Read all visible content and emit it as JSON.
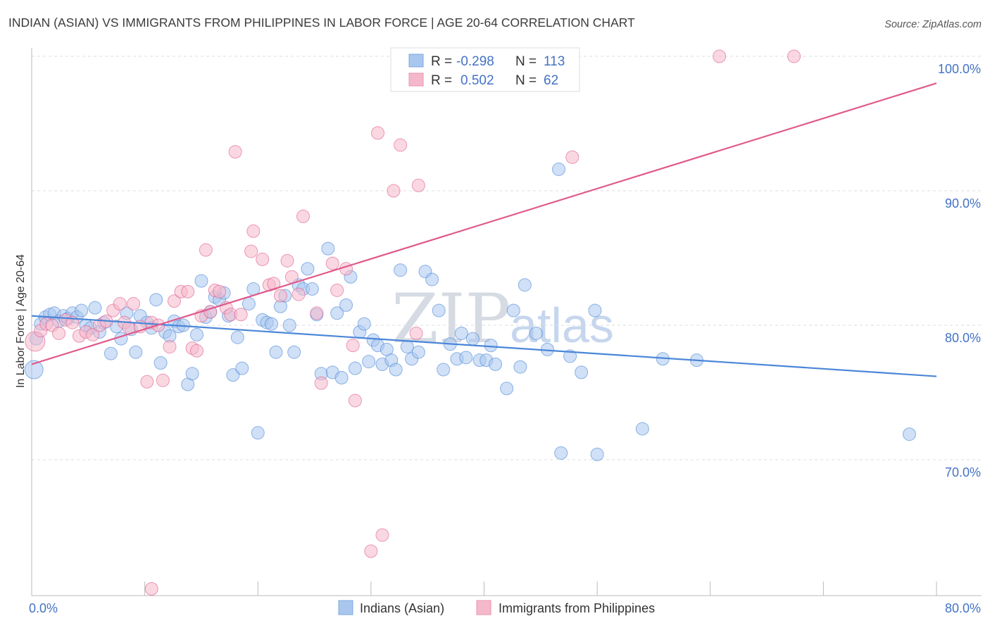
{
  "header": {
    "title": "INDIAN (ASIAN) VS IMMIGRANTS FROM PHILIPPINES IN LABOR FORCE | AGE 20-64 CORRELATION CHART",
    "source": "Source: ZipAtlas.com"
  },
  "watermark": {
    "part1": "ZIP",
    "part2": "atlas"
  },
  "legend_top": {
    "rows": [
      {
        "r_label": "R =",
        "r_value": "-0.298",
        "n_label": "N =",
        "n_value": "113",
        "color": "#a9c6ee"
      },
      {
        "r_label": "R =",
        "r_value": "0.502",
        "n_label": "N =",
        "n_value": "62",
        "color": "#f5b8cb"
      }
    ]
  },
  "legend_bottom": {
    "items": [
      {
        "label": "Indians (Asian)",
        "color": "#a9c6ee"
      },
      {
        "label": "Immigrants from Philippines",
        "color": "#f5b8cb"
      }
    ]
  },
  "chart_data": {
    "type": "scatter",
    "title": "INDIAN (ASIAN) VS IMMIGRANTS FROM PHILIPPINES IN LABOR FORCE | AGE 20-64 CORRELATION CHART",
    "xlabel": "",
    "ylabel": "In Labor Force | Age 20-64",
    "xlim": [
      0,
      80
    ],
    "ylim": [
      60,
      101
    ],
    "x_tick_labels": [
      "0.0%",
      "80.0%"
    ],
    "y_ticks": [
      70,
      80,
      90,
      100
    ],
    "y_tick_labels": [
      "70.0%",
      "80.0%",
      "90.0%",
      "100.0%"
    ],
    "grid": true,
    "series": [
      {
        "name": "Indians (Asian)",
        "color": "#4a86d8",
        "fill": "#a9c6ee",
        "trend": {
          "x": [
            0,
            80
          ],
          "y": [
            80.7,
            76.2
          ]
        },
        "points": [
          [
            0.2,
            76.7
          ],
          [
            0.4,
            79.0
          ],
          [
            0.8,
            80.1
          ],
          [
            1.2,
            80.6
          ],
          [
            1.6,
            80.8
          ],
          [
            2.0,
            80.9
          ],
          [
            2.4,
            80.3
          ],
          [
            2.8,
            80.7
          ],
          [
            3.2,
            80.5
          ],
          [
            3.6,
            80.9
          ],
          [
            4.0,
            80.6
          ],
          [
            4.4,
            81.1
          ],
          [
            4.8,
            80.0
          ],
          [
            5.2,
            79.8
          ],
          [
            5.6,
            81.3
          ],
          [
            6.0,
            79.5
          ],
          [
            6.4,
            80.2
          ],
          [
            7.0,
            77.9
          ],
          [
            7.5,
            79.9
          ],
          [
            7.9,
            79.0
          ],
          [
            8.4,
            80.9
          ],
          [
            8.8,
            79.7
          ],
          [
            9.2,
            78.0
          ],
          [
            9.6,
            80.7
          ],
          [
            10.2,
            80.2
          ],
          [
            10.6,
            79.8
          ],
          [
            11.0,
            81.9
          ],
          [
            11.4,
            77.2
          ],
          [
            11.8,
            79.5
          ],
          [
            12.2,
            79.2
          ],
          [
            12.6,
            80.3
          ],
          [
            13.0,
            79.9
          ],
          [
            13.4,
            80.0
          ],
          [
            13.8,
            75.6
          ],
          [
            14.2,
            76.4
          ],
          [
            14.6,
            79.3
          ],
          [
            15.0,
            83.3
          ],
          [
            15.4,
            80.6
          ],
          [
            15.8,
            81.0
          ],
          [
            16.2,
            82.1
          ],
          [
            16.6,
            81.9
          ],
          [
            17.0,
            82.4
          ],
          [
            17.4,
            80.7
          ],
          [
            17.8,
            76.3
          ],
          [
            18.2,
            79.1
          ],
          [
            18.6,
            76.8
          ],
          [
            19.2,
            81.6
          ],
          [
            19.6,
            82.7
          ],
          [
            20.0,
            72.0
          ],
          [
            20.4,
            80.4
          ],
          [
            20.8,
            80.2
          ],
          [
            21.2,
            80.1
          ],
          [
            21.6,
            78.0
          ],
          [
            22.0,
            81.4
          ],
          [
            22.4,
            82.2
          ],
          [
            22.8,
            80.0
          ],
          [
            23.2,
            78.0
          ],
          [
            23.6,
            83.0
          ],
          [
            24.0,
            82.7
          ],
          [
            24.4,
            84.2
          ],
          [
            24.8,
            82.7
          ],
          [
            25.2,
            80.8
          ],
          [
            25.6,
            76.4
          ],
          [
            26.2,
            85.7
          ],
          [
            26.6,
            76.5
          ],
          [
            27.0,
            80.9
          ],
          [
            27.4,
            76.1
          ],
          [
            27.8,
            81.5
          ],
          [
            28.2,
            83.6
          ],
          [
            28.6,
            76.8
          ],
          [
            29.0,
            79.5
          ],
          [
            29.4,
            80.1
          ],
          [
            29.8,
            77.3
          ],
          [
            30.2,
            78.9
          ],
          [
            30.6,
            78.5
          ],
          [
            31.0,
            77.1
          ],
          [
            31.4,
            78.2
          ],
          [
            31.8,
            77.4
          ],
          [
            32.2,
            76.7
          ],
          [
            32.6,
            84.1
          ],
          [
            33.2,
            78.4
          ],
          [
            33.6,
            77.5
          ],
          [
            34.2,
            78.0
          ],
          [
            34.8,
            84.0
          ],
          [
            35.4,
            83.4
          ],
          [
            36.0,
            81.1
          ],
          [
            36.4,
            76.7
          ],
          [
            37.0,
            78.6
          ],
          [
            37.6,
            77.5
          ],
          [
            38.0,
            79.4
          ],
          [
            38.4,
            77.6
          ],
          [
            39.0,
            79.0
          ],
          [
            39.6,
            77.4
          ],
          [
            40.2,
            77.4
          ],
          [
            40.6,
            78.5
          ],
          [
            41.0,
            77.1
          ],
          [
            42.0,
            75.3
          ],
          [
            42.6,
            81.1
          ],
          [
            43.2,
            76.9
          ],
          [
            43.6,
            83.0
          ],
          [
            44.6,
            79.4
          ],
          [
            45.6,
            78.2
          ],
          [
            46.6,
            91.6
          ],
          [
            46.8,
            70.5
          ],
          [
            47.6,
            77.7
          ],
          [
            48.6,
            76.5
          ],
          [
            49.8,
            81.1
          ],
          [
            50.0,
            70.4
          ],
          [
            54.0,
            72.3
          ],
          [
            55.8,
            77.5
          ],
          [
            58.8,
            77.4
          ],
          [
            77.6,
            71.9
          ]
        ]
      },
      {
        "name": "Immigrants from Philippines",
        "color": "#e05a8c",
        "fill": "#f5b8cb",
        "trend": {
          "x": [
            0,
            80
          ],
          "y": [
            77.1,
            98.0
          ]
        },
        "points": [
          [
            0.3,
            78.8
          ],
          [
            0.8,
            79.6
          ],
          [
            1.3,
            80.1
          ],
          [
            1.8,
            80.0
          ],
          [
            2.4,
            79.4
          ],
          [
            3.0,
            80.4
          ],
          [
            3.6,
            80.2
          ],
          [
            4.2,
            79.2
          ],
          [
            4.8,
            79.5
          ],
          [
            5.4,
            79.3
          ],
          [
            6.0,
            80.0
          ],
          [
            6.6,
            80.3
          ],
          [
            7.2,
            81.1
          ],
          [
            7.8,
            81.6
          ],
          [
            8.2,
            80.2
          ],
          [
            8.6,
            79.8
          ],
          [
            9.0,
            81.6
          ],
          [
            9.6,
            79.9
          ],
          [
            10.2,
            75.8
          ],
          [
            10.6,
            80.2
          ],
          [
            11.2,
            80.0
          ],
          [
            11.6,
            75.9
          ],
          [
            12.2,
            78.4
          ],
          [
            12.6,
            81.8
          ],
          [
            13.2,
            82.5
          ],
          [
            13.8,
            82.5
          ],
          [
            14.2,
            78.3
          ],
          [
            14.6,
            78.1
          ],
          [
            15.0,
            80.7
          ],
          [
            15.4,
            85.6
          ],
          [
            15.8,
            81.0
          ],
          [
            16.2,
            82.6
          ],
          [
            16.6,
            82.5
          ],
          [
            17.2,
            81.3
          ],
          [
            17.6,
            80.8
          ],
          [
            18.0,
            92.9
          ],
          [
            18.5,
            80.8
          ],
          [
            19.4,
            85.5
          ],
          [
            19.6,
            87.0
          ],
          [
            20.4,
            84.9
          ],
          [
            21.0,
            83.0
          ],
          [
            21.4,
            83.1
          ],
          [
            22.0,
            82.2
          ],
          [
            22.6,
            84.8
          ],
          [
            23.0,
            83.6
          ],
          [
            23.6,
            82.3
          ],
          [
            24.0,
            88.1
          ],
          [
            25.2,
            80.9
          ],
          [
            25.6,
            75.7
          ],
          [
            26.6,
            84.6
          ],
          [
            27.0,
            82.6
          ],
          [
            27.8,
            84.2
          ],
          [
            28.4,
            78.5
          ],
          [
            28.6,
            74.4
          ],
          [
            30.0,
            63.2
          ],
          [
            30.6,
            94.3
          ],
          [
            31.0,
            64.4
          ],
          [
            32.0,
            90.0
          ],
          [
            32.6,
            93.4
          ],
          [
            34.0,
            79.4
          ],
          [
            34.2,
            90.4
          ],
          [
            10.6,
            60.4
          ],
          [
            47.8,
            92.5
          ],
          [
            60.8,
            100.0
          ],
          [
            67.4,
            100.0
          ]
        ]
      }
    ]
  }
}
